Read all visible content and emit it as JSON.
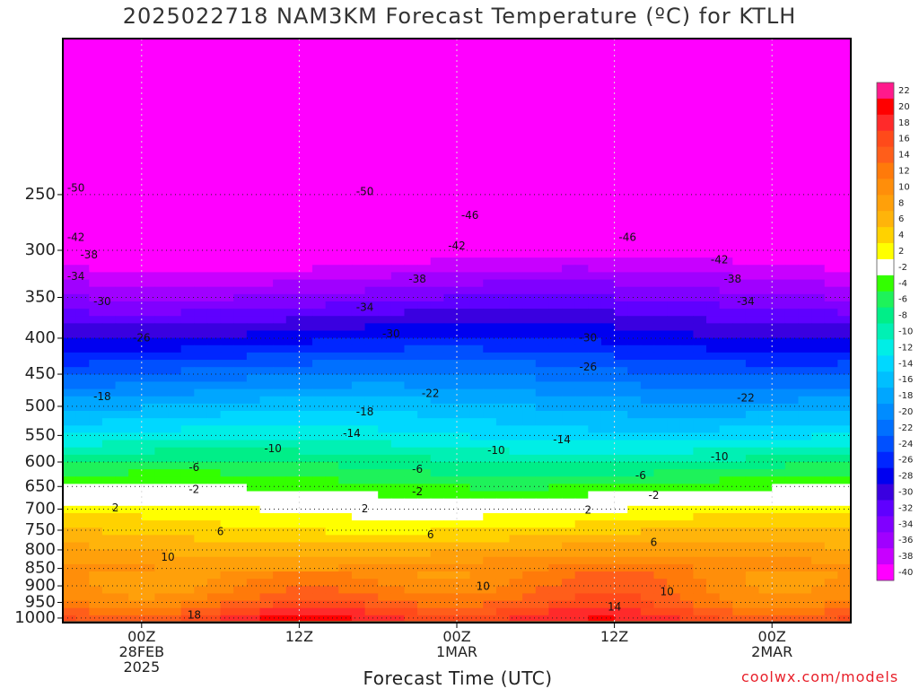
{
  "chart_data": {
    "type": "heatmap",
    "title": "2025022718 NAM3KM Forecast Temperature (ºC) for KTLH",
    "xlabel": "Forecast Time (UTC)",
    "ylabel": "",
    "y_axis": {
      "ticks": [
        250,
        300,
        350,
        400,
        450,
        500,
        550,
        600,
        650,
        700,
        750,
        800,
        850,
        900,
        950,
        1000
      ],
      "range": [
        1015,
        150
      ],
      "scale": "log",
      "grid": "dotted"
    },
    "x_axis": {
      "range_hours": [
        0,
        60
      ],
      "ticks": [
        {
          "hour": 6,
          "lines": [
            "00Z",
            "28FEB",
            "2025"
          ]
        },
        {
          "hour": 18,
          "lines": [
            "12Z"
          ]
        },
        {
          "hour": 30,
          "lines": [
            "00Z",
            "1MAR"
          ]
        },
        {
          "hour": 42,
          "lines": [
            "12Z"
          ]
        },
        {
          "hour": 54,
          "lines": [
            "00Z",
            "2MAR"
          ]
        }
      ],
      "grid": "dotted"
    },
    "colorbar": {
      "labels": [
        22,
        20,
        18,
        16,
        14,
        12,
        10,
        8,
        6,
        4,
        2,
        -2,
        -4,
        -6,
        -8,
        -10,
        -12,
        -14,
        -16,
        -18,
        -20,
        -22,
        -24,
        -26,
        -28,
        -30,
        -32,
        -34,
        -36,
        -38,
        -40
      ],
      "colors": [
        "#ff1a8c",
        "#ff0000",
        "#ff2a2a",
        "#ff4a1a",
        "#ff5e1a",
        "#ff7a0a",
        "#ff8e0a",
        "#ffa00a",
        "#ffb40a",
        "#ffd200",
        "#ffff00",
        "#ffffff",
        "#33ff00",
        "#1ef25a",
        "#00ee88",
        "#00f0b4",
        "#00eee6",
        "#00d8ff",
        "#00bfff",
        "#00a6ff",
        "#008cff",
        "#0070ff",
        "#0050ff",
        "#0026ff",
        "#0000f0",
        "#3a00e0",
        "#5f00ff",
        "#8000ff",
        "#a000ff",
        "#c800ff",
        "#ff00ff"
      ]
    },
    "profile": [
      {
        "p": 200,
        "t": -53
      },
      {
        "p": 250,
        "t": -49
      },
      {
        "p": 300,
        "t": -40
      },
      {
        "p": 350,
        "t": -33
      },
      {
        "p": 400,
        "t": -27
      },
      {
        "p": 450,
        "t": -21
      },
      {
        "p": 500,
        "t": -16
      },
      {
        "p": 550,
        "t": -12
      },
      {
        "p": 600,
        "t": -7
      },
      {
        "p": 650,
        "t": -3
      },
      {
        "p": 680,
        "t": 0
      },
      {
        "p": 700,
        "t": 2
      },
      {
        "p": 750,
        "t": 5
      },
      {
        "p": 800,
        "t": 8
      },
      {
        "p": 850,
        "t": 11
      },
      {
        "p": 900,
        "t": 12
      },
      {
        "p": 950,
        "t": 14
      },
      {
        "p": 1000,
        "t": 18
      }
    ],
    "contour_labels": [
      {
        "text": "-50",
        "hour": 1,
        "p": 245
      },
      {
        "text": "-50",
        "hour": 23,
        "p": 248
      },
      {
        "text": "-46",
        "hour": 31,
        "p": 268
      },
      {
        "text": "-46",
        "hour": 43,
        "p": 288
      },
      {
        "text": "-42",
        "hour": 1,
        "p": 288
      },
      {
        "text": "-42",
        "hour": 30,
        "p": 296
      },
      {
        "text": "-42",
        "hour": 50,
        "p": 310
      },
      {
        "text": "-38",
        "hour": 2,
        "p": 305
      },
      {
        "text": "-38",
        "hour": 27,
        "p": 330
      },
      {
        "text": "-38",
        "hour": 51,
        "p": 330
      },
      {
        "text": "-34",
        "hour": 1,
        "p": 327
      },
      {
        "text": "-34",
        "hour": 23,
        "p": 362
      },
      {
        "text": "-34",
        "hour": 52,
        "p": 355
      },
      {
        "text": "-30",
        "hour": 3,
        "p": 355
      },
      {
        "text": "-30",
        "hour": 25,
        "p": 395
      },
      {
        "text": "-30",
        "hour": 40,
        "p": 400
      },
      {
        "text": "-26",
        "hour": 6,
        "p": 400
      },
      {
        "text": "-26",
        "hour": 40,
        "p": 440
      },
      {
        "text": "-22",
        "hour": 28,
        "p": 480
      },
      {
        "text": "-22",
        "hour": 52,
        "p": 487
      },
      {
        "text": "-18",
        "hour": 3,
        "p": 485
      },
      {
        "text": "-18",
        "hour": 23,
        "p": 510
      },
      {
        "text": "-14",
        "hour": 22,
        "p": 547
      },
      {
        "text": "-14",
        "hour": 38,
        "p": 558
      },
      {
        "text": "-10",
        "hour": 16,
        "p": 575
      },
      {
        "text": "-10",
        "hour": 33,
        "p": 578
      },
      {
        "text": "-10",
        "hour": 50,
        "p": 590
      },
      {
        "text": "-6",
        "hour": 10,
        "p": 612
      },
      {
        "text": "-6",
        "hour": 27,
        "p": 615
      },
      {
        "text": "-6",
        "hour": 44,
        "p": 628
      },
      {
        "text": "-2",
        "hour": 10,
        "p": 657
      },
      {
        "text": "-2",
        "hour": 27,
        "p": 662
      },
      {
        "text": "-2",
        "hour": 45,
        "p": 670
      },
      {
        "text": "2",
        "hour": 4,
        "p": 698
      },
      {
        "text": "2",
        "hour": 23,
        "p": 700
      },
      {
        "text": "2",
        "hour": 40,
        "p": 703
      },
      {
        "text": "6",
        "hour": 12,
        "p": 755
      },
      {
        "text": "6",
        "hour": 28,
        "p": 762
      },
      {
        "text": "6",
        "hour": 45,
        "p": 782
      },
      {
        "text": "10",
        "hour": 8,
        "p": 820
      },
      {
        "text": "10",
        "hour": 32,
        "p": 903
      },
      {
        "text": "10",
        "hour": 46,
        "p": 918
      },
      {
        "text": "14",
        "hour": 42,
        "p": 965
      },
      {
        "text": "18",
        "hour": 10,
        "p": 992
      }
    ]
  },
  "footer": {
    "watermark": "coolwx.com/models"
  }
}
